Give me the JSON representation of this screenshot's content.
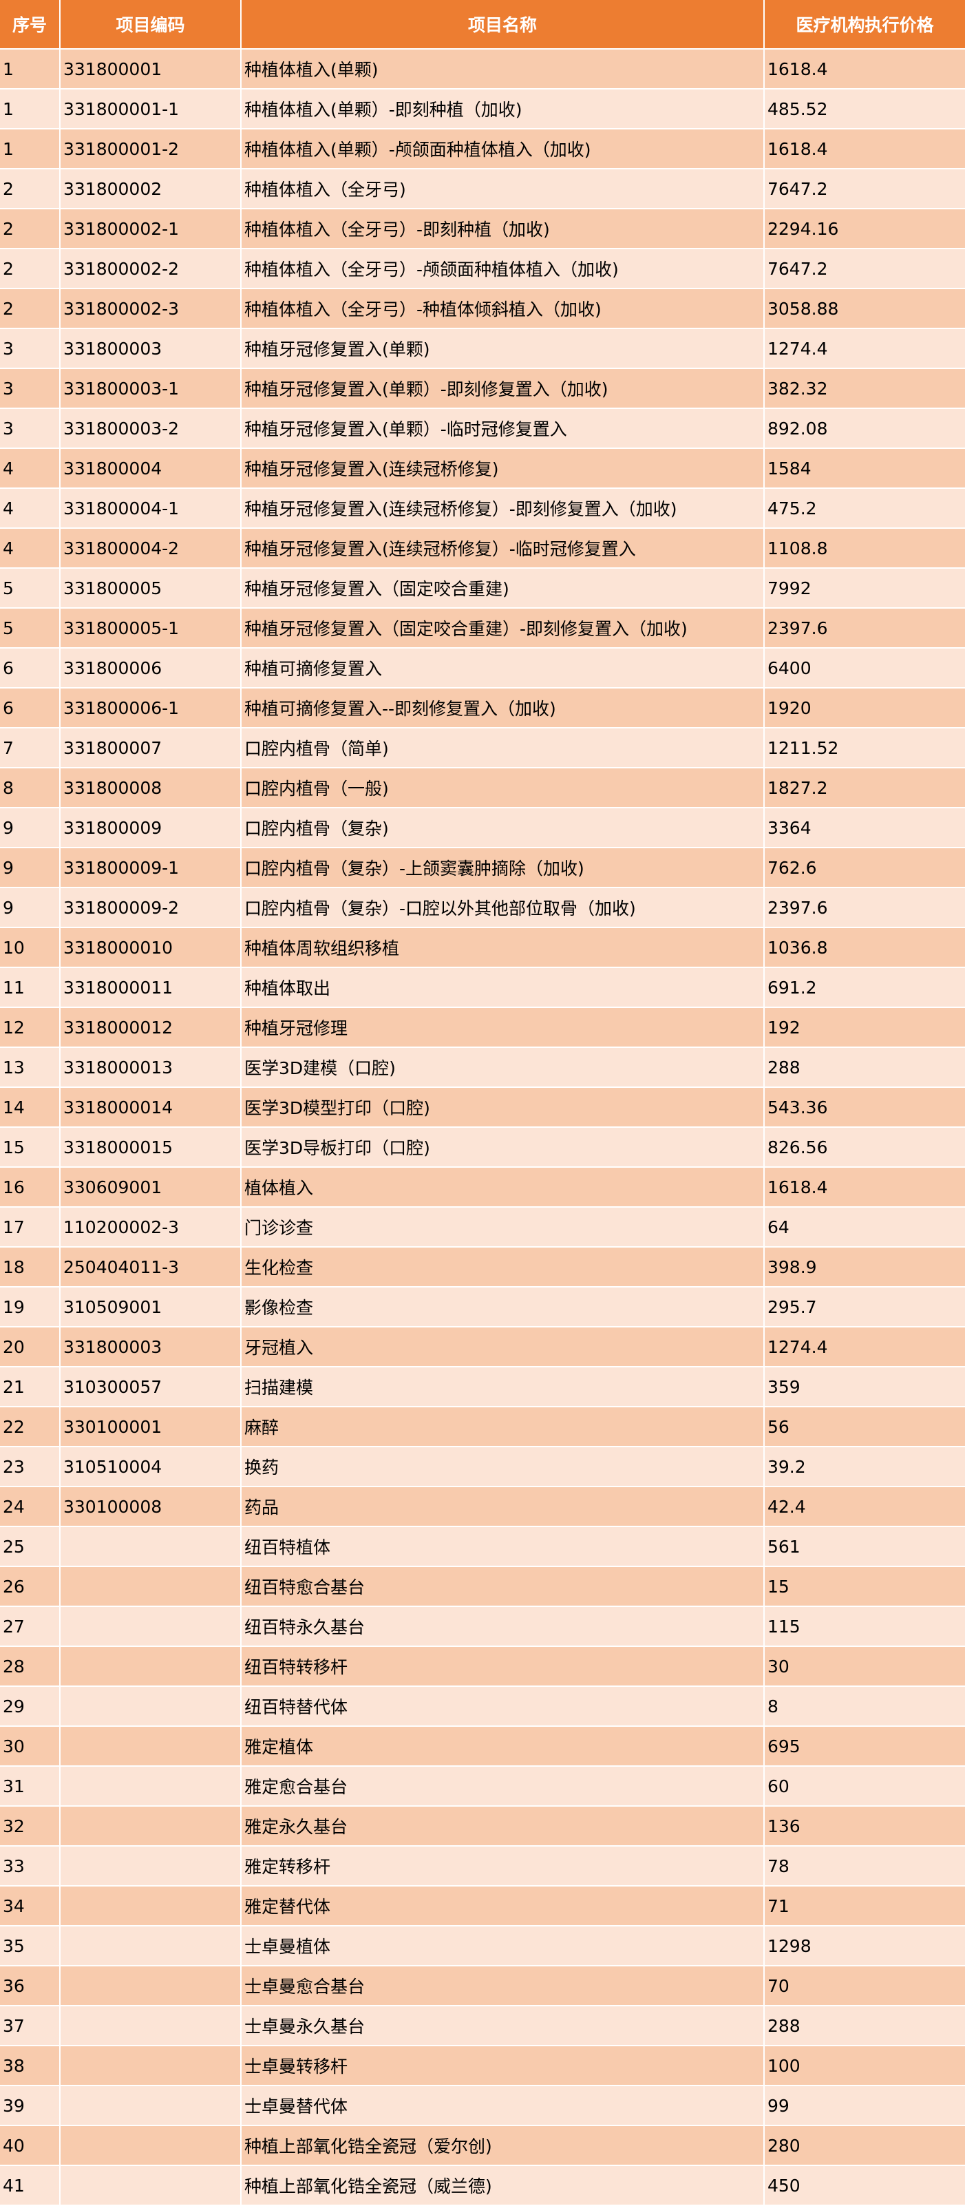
{
  "colors": {
    "header": "#ed7d31",
    "row_dark": "#f8cbad",
    "row_light": "#fce4d6"
  },
  "headers": [
    "序号",
    "项目编码",
    "项目名称",
    "医疗机构执行价格"
  ],
  "rows": [
    [
      "1",
      "331800001",
      "种植体植入(单颗)",
      "1618.4"
    ],
    [
      "1",
      "331800001-1",
      "种植体植入(单颗）-即刻种植（加收)",
      "485.52"
    ],
    [
      "1",
      "331800001-2",
      "种植体植入(单颗）-颅颌面种植体植入（加收)",
      "1618.4"
    ],
    [
      "2",
      "331800002",
      "种植体植入（全牙弓)",
      "7647.2"
    ],
    [
      "2",
      "331800002-1",
      "种植体植入（全牙弓）-即刻种植（加收)",
      "2294.16"
    ],
    [
      "2",
      "331800002-2",
      "种植体植入（全牙弓）-颅颌面种植体植入（加收)",
      "7647.2"
    ],
    [
      "2",
      "331800002-3",
      "种植体植入（全牙弓）-种植体倾斜植入（加收)",
      "3058.88"
    ],
    [
      "3",
      "331800003",
      "种植牙冠修复置入(单颗)",
      "1274.4"
    ],
    [
      "3",
      "331800003-1",
      "种植牙冠修复置入(单颗）-即刻修复置入（加收)",
      "382.32"
    ],
    [
      "3",
      "331800003-2",
      "种植牙冠修复置入(单颗）-临时冠修复置入",
      "892.08"
    ],
    [
      "4",
      "331800004",
      "种植牙冠修复置入(连续冠桥修复)",
      "1584"
    ],
    [
      "4",
      "331800004-1",
      "种植牙冠修复置入(连续冠桥修复）-即刻修复置入（加收)",
      "475.2"
    ],
    [
      "4",
      "331800004-2",
      "种植牙冠修复置入(连续冠桥修复）-临时冠修复置入",
      "1108.8"
    ],
    [
      "5",
      "331800005",
      "种植牙冠修复置入（固定咬合重建)",
      "7992"
    ],
    [
      "5",
      "331800005-1",
      "种植牙冠修复置入（固定咬合重建）-即刻修复置入（加收)",
      "2397.6"
    ],
    [
      "6",
      "331800006",
      "种植可摘修复置入",
      "6400"
    ],
    [
      "6",
      "331800006-1",
      "种植可摘修复置入--即刻修复置入（加收)",
      "1920"
    ],
    [
      "7",
      "331800007",
      "口腔内植骨（简单)",
      "1211.52"
    ],
    [
      "8",
      "331800008",
      "口腔内植骨（一般)",
      "1827.2"
    ],
    [
      "9",
      "331800009",
      "口腔内植骨（复杂)",
      "3364"
    ],
    [
      "9",
      "331800009-1",
      "口腔内植骨（复杂）-上颌窦囊肿摘除（加收)",
      "762.6"
    ],
    [
      "9",
      "331800009-2",
      "口腔内植骨（复杂）-口腔以外其他部位取骨（加收)",
      "2397.6"
    ],
    [
      "10",
      "3318000010",
      "种植体周软组织移植",
      "1036.8"
    ],
    [
      "11",
      "3318000011",
      "种植体取出",
      "691.2"
    ],
    [
      "12",
      "3318000012",
      "种植牙冠修理",
      "192"
    ],
    [
      "13",
      "3318000013",
      "医学3D建模（口腔)",
      "288"
    ],
    [
      "14",
      "3318000014",
      "医学3D模型打印（口腔)",
      "543.36"
    ],
    [
      "15",
      "3318000015",
      "医学3D导板打印（口腔)",
      "826.56"
    ],
    [
      "16",
      "330609001",
      "植体植入",
      "1618.4"
    ],
    [
      "17",
      "110200002-3",
      "门诊诊查",
      "64"
    ],
    [
      "18",
      "250404011-3",
      "生化检查",
      "398.9"
    ],
    [
      "19",
      "310509001",
      "影像检查",
      "295.7"
    ],
    [
      "20",
      "331800003",
      "牙冠植入",
      "1274.4"
    ],
    [
      "21",
      "310300057",
      "扫描建模",
      "359"
    ],
    [
      "22",
      "330100001",
      "麻醉",
      "56"
    ],
    [
      "23",
      "310510004",
      "换药",
      "39.2"
    ],
    [
      "24",
      "330100008",
      "药品",
      "42.4"
    ],
    [
      "25",
      "",
      "纽百特植体",
      "561"
    ],
    [
      "26",
      "",
      "纽百特愈合基台",
      "15"
    ],
    [
      "27",
      "",
      "纽百特永久基台",
      "115"
    ],
    [
      "28",
      "",
      "纽百特转移杆",
      "30"
    ],
    [
      "29",
      "",
      "纽百特替代体",
      "8"
    ],
    [
      "30",
      "",
      "雅定植体",
      "695"
    ],
    [
      "31",
      "",
      "雅定愈合基台",
      "60"
    ],
    [
      "32",
      "",
      "雅定永久基台",
      "136"
    ],
    [
      "33",
      "",
      "雅定转移杆",
      "78"
    ],
    [
      "34",
      "",
      "雅定替代体",
      "71"
    ],
    [
      "35",
      "",
      "士卓曼植体",
      "1298"
    ],
    [
      "36",
      "",
      "士卓曼愈合基台",
      "70"
    ],
    [
      "37",
      "",
      "士卓曼永久基台",
      "288"
    ],
    [
      "38",
      "",
      "士卓曼转移杆",
      "100"
    ],
    [
      "39",
      "",
      "士卓曼替代体",
      "99"
    ],
    [
      "40",
      "",
      "种植上部氧化锆全瓷冠（爱尔创)",
      "280"
    ],
    [
      "41",
      "",
      "种植上部氧化锆全瓷冠（威兰德)",
      "450"
    ]
  ]
}
